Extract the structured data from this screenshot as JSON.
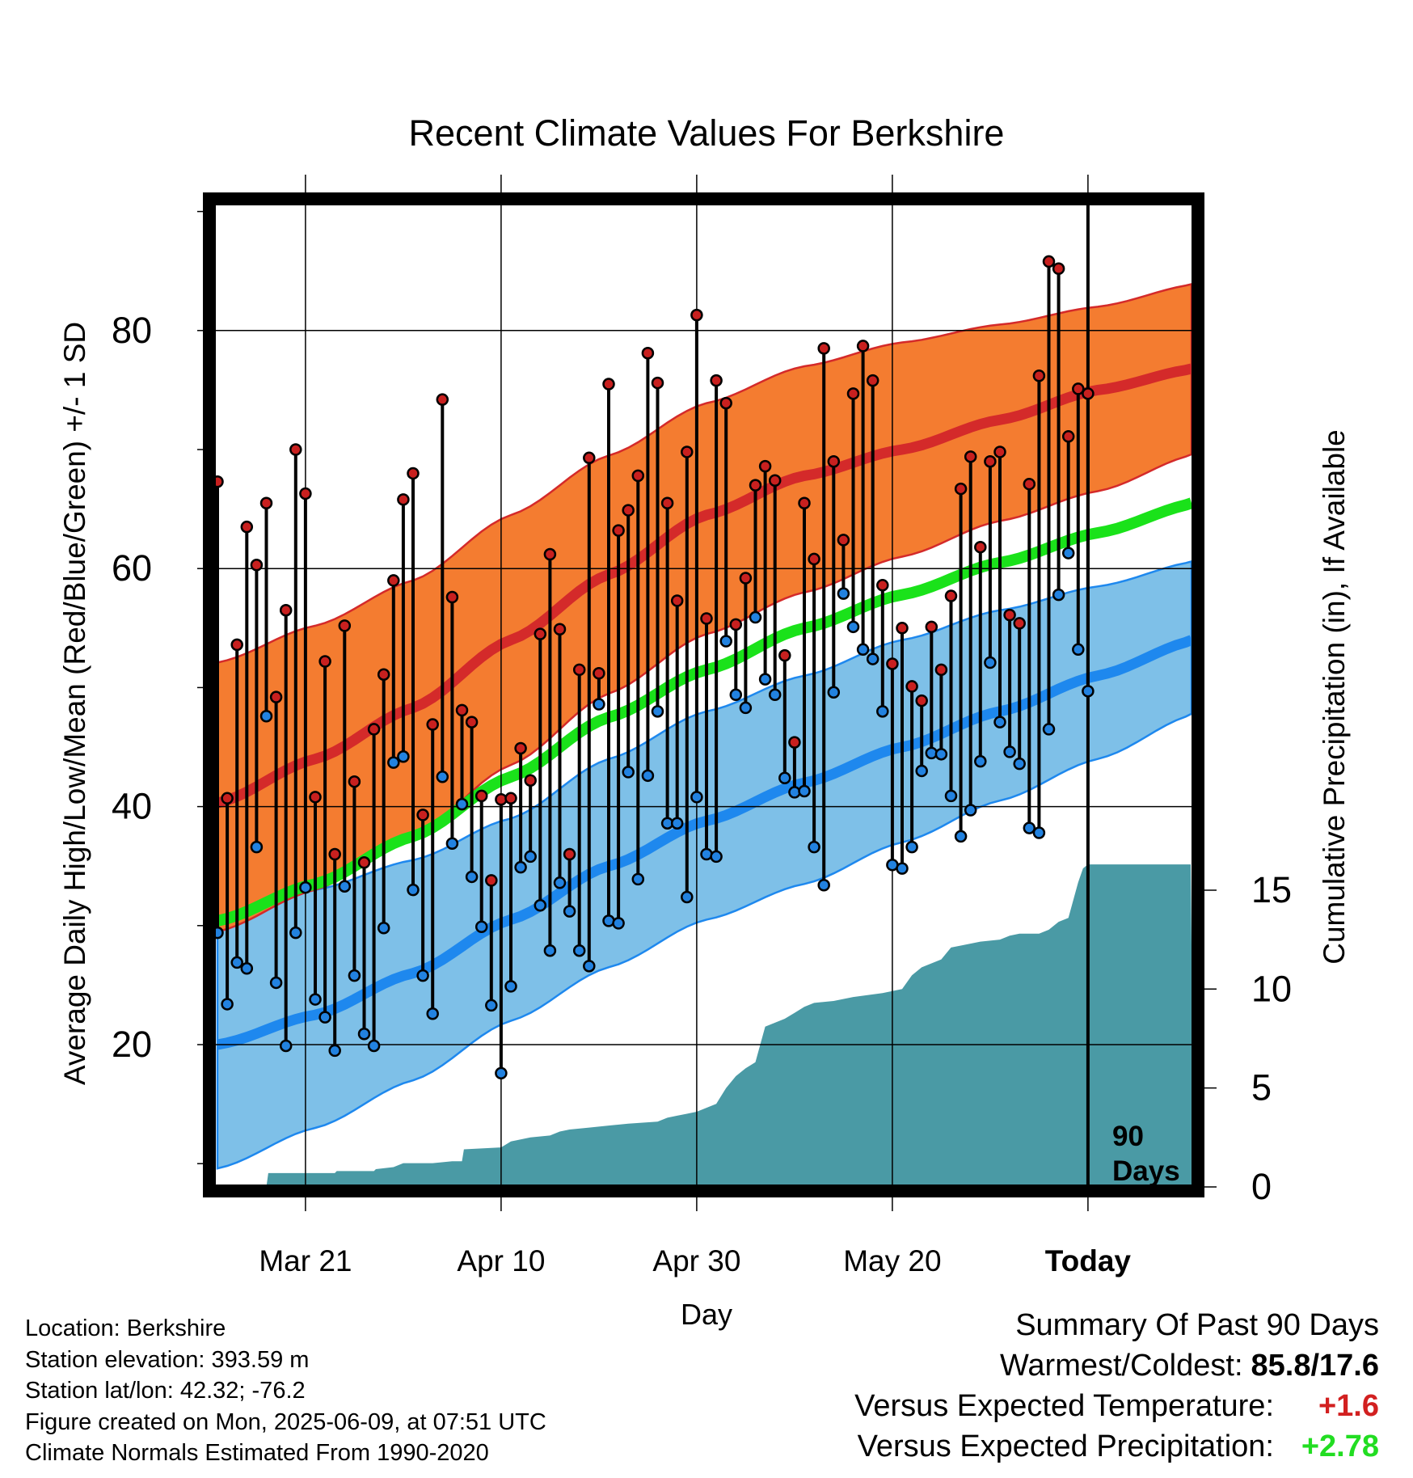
{
  "chart_data": {
    "type": "line",
    "title": "Recent Climate Values For Berkshire",
    "xlabel": "Day",
    "ylabel_left": "Average Daily High/Low/Mean (Red/Blue/Green) +/- 1 SD",
    "ylabel_right": "Cumulative Precipitation (in), If Available",
    "x_tick_labels": [
      "Mar 21",
      "Apr 10",
      "Apr 30",
      "May 20",
      "Today"
    ],
    "x_tick_days": [
      9,
      29,
      49,
      69,
      89
    ],
    "y_left_ticks": [
      20,
      40,
      60,
      80
    ],
    "y_left_range": [
      8,
      92
    ],
    "y_right_ticks": [
      0,
      5,
      10,
      15
    ],
    "y_right_range": [
      0,
      50.5
    ],
    "grid": true,
    "today_marker_label": [
      "90",
      "Days"
    ],
    "colors": {
      "high_band": "#f47c30",
      "high_mean": "#d42a2a",
      "low_band": "#7ec0e8",
      "low_mean": "#1e88ee",
      "mean_normal": "#1ae21a",
      "precip": "#4a9aa5",
      "high_dot": "#c8201f",
      "low_dot": "#2282e0"
    },
    "normal_high_mean": [
      [
        0,
        40.3
      ],
      [
        10,
        44
      ],
      [
        20,
        48.3
      ],
      [
        30,
        54
      ],
      [
        40,
        59.5
      ],
      [
        50,
        64.5
      ],
      [
        60,
        67.8
      ],
      [
        70,
        70
      ],
      [
        80,
        72.5
      ],
      [
        90,
        75
      ],
      [
        100,
        76.8
      ]
    ],
    "normal_high_upper": [
      [
        0,
        52.1
      ],
      [
        10,
        55.2
      ],
      [
        20,
        59
      ],
      [
        30,
        64.5
      ],
      [
        40,
        69.5
      ],
      [
        50,
        73.9
      ],
      [
        60,
        77
      ],
      [
        70,
        79
      ],
      [
        80,
        80.5
      ],
      [
        90,
        82
      ],
      [
        100,
        83.9
      ]
    ],
    "normal_high_lower": [
      [
        0,
        29.5
      ],
      [
        10,
        33
      ],
      [
        20,
        37.5
      ],
      [
        30,
        43.5
      ],
      [
        40,
        49.5
      ],
      [
        50,
        54.5
      ],
      [
        60,
        58
      ],
      [
        70,
        61
      ],
      [
        80,
        64
      ],
      [
        90,
        66.5
      ],
      [
        100,
        69.6
      ]
    ],
    "normal_low_mean": [
      [
        0,
        20
      ],
      [
        10,
        22.5
      ],
      [
        20,
        26
      ],
      [
        30,
        30.5
      ],
      [
        40,
        35
      ],
      [
        50,
        38.8
      ],
      [
        60,
        42
      ],
      [
        70,
        45
      ],
      [
        80,
        48
      ],
      [
        90,
        51
      ],
      [
        100,
        54
      ]
    ],
    "normal_low_upper": [
      [
        0,
        30.4
      ],
      [
        10,
        33
      ],
      [
        20,
        35.5
      ],
      [
        30,
        39
      ],
      [
        40,
        44
      ],
      [
        50,
        48
      ],
      [
        60,
        51
      ],
      [
        70,
        54
      ],
      [
        80,
        56.5
      ],
      [
        90,
        58.5
      ],
      [
        100,
        60.6
      ]
    ],
    "normal_low_lower": [
      [
        0,
        9.6
      ],
      [
        10,
        13
      ],
      [
        20,
        17
      ],
      [
        30,
        22
      ],
      [
        40,
        26.5
      ],
      [
        50,
        30.5
      ],
      [
        60,
        33.5
      ],
      [
        70,
        37
      ],
      [
        80,
        40.5
      ],
      [
        90,
        44
      ],
      [
        100,
        47.8
      ]
    ],
    "normal_mean": [
      [
        0,
        30.4
      ],
      [
        10,
        33.5
      ],
      [
        20,
        37.5
      ],
      [
        30,
        42.5
      ],
      [
        40,
        47.5
      ],
      [
        50,
        51.5
      ],
      [
        60,
        55
      ],
      [
        70,
        57.8
      ],
      [
        80,
        60.5
      ],
      [
        90,
        63
      ],
      [
        100,
        65.5
      ]
    ],
    "daily_high": [
      67.3,
      40.7,
      53.6,
      63.5,
      60.3,
      65.5,
      49.2,
      56.5,
      70,
      66.3,
      40.8,
      52.2,
      36,
      55.2,
      42.1,
      35.3,
      46.5,
      51.1,
      59,
      65.8,
      68,
      39.3,
      46.9,
      74.2,
      57.6,
      48.1,
      47.1,
      40.9,
      33.8,
      40.6,
      40.7,
      44.9,
      42.2,
      54.5,
      61.2,
      54.9,
      36,
      51.5,
      69.3,
      51.2,
      75.5,
      63.2,
      64.9,
      67.8,
      78.1,
      75.6,
      65.5,
      57.3,
      69.8,
      81.3,
      55.8,
      75.8,
      73.9,
      55.3,
      59.2,
      67,
      68.6,
      67.4,
      52.7,
      45.4,
      65.5,
      60.8,
      78.5,
      69,
      62.4,
      74.7,
      78.7,
      75.8,
      58.6,
      52,
      55,
      50.1,
      48.9,
      55.1,
      51.5,
      57.7,
      66.7,
      69.4,
      61.8,
      69,
      69.8,
      56.1,
      55.4,
      67.1,
      76.2,
      85.8,
      85.2,
      71.1,
      75.1,
      74.7
    ],
    "daily_low": [
      29.4,
      23.4,
      26.9,
      26.4,
      36.6,
      47.6,
      25.2,
      19.9,
      29.4,
      33.2,
      23.8,
      22.3,
      19.5,
      33.3,
      25.8,
      20.9,
      19.9,
      29.8,
      43.7,
      44.2,
      33,
      25.8,
      22.6,
      42.5,
      36.9,
      40.2,
      34.1,
      29.9,
      23.3,
      17.6,
      24.9,
      34.9,
      35.8,
      31.7,
      27.9,
      33.6,
      31.2,
      27.9,
      26.6,
      48.6,
      30.4,
      30.2,
      42.9,
      33.9,
      42.6,
      48,
      38.6,
      38.6,
      32.4,
      40.8,
      36,
      35.8,
      53.9,
      49.4,
      48.3,
      55.9,
      50.7,
      49.4,
      42.4,
      41.2,
      41.3,
      36.6,
      33.4,
      49.6,
      57.9,
      55.1,
      53.2,
      52.4,
      48,
      35.1,
      34.8,
      36.6,
      43,
      44.5,
      44.4,
      40.9,
      37.5,
      39.7,
      43.8,
      52.1,
      47.1,
      44.6,
      43.6,
      38.2,
      37.8,
      46.5,
      57.8,
      61.3,
      53.2,
      49.7
    ],
    "cumulative_precip": [
      [
        0,
        0
      ],
      [
        5,
        0
      ],
      [
        5.2,
        0.7
      ],
      [
        12,
        0.7
      ],
      [
        12.2,
        0.8
      ],
      [
        16,
        0.8
      ],
      [
        16.2,
        0.9
      ],
      [
        18,
        1.0
      ],
      [
        19,
        1.2
      ],
      [
        22,
        1.2
      ],
      [
        24,
        1.3
      ],
      [
        25,
        1.3
      ],
      [
        25.2,
        1.9
      ],
      [
        29,
        2.0
      ],
      [
        30,
        2.3
      ],
      [
        32,
        2.5
      ],
      [
        34,
        2.6
      ],
      [
        35,
        2.8
      ],
      [
        36,
        2.9
      ],
      [
        38,
        3.0
      ],
      [
        40,
        3.1
      ],
      [
        42,
        3.2
      ],
      [
        45,
        3.3
      ],
      [
        46,
        3.5
      ],
      [
        47,
        3.6
      ],
      [
        48,
        3.7
      ],
      [
        49,
        3.8
      ],
      [
        50,
        4.0
      ],
      [
        51,
        4.2
      ],
      [
        52,
        5.0
      ],
      [
        53,
        5.6
      ],
      [
        54,
        6.0
      ],
      [
        55,
        6.3
      ],
      [
        56,
        8.1
      ],
      [
        57,
        8.3
      ],
      [
        58,
        8.5
      ],
      [
        59,
        8.8
      ],
      [
        60,
        9.1
      ],
      [
        61,
        9.3
      ],
      [
        63,
        9.4
      ],
      [
        65,
        9.6
      ],
      [
        68,
        9.8
      ],
      [
        70,
        10.0
      ],
      [
        71,
        10.7
      ],
      [
        72,
        11.1
      ],
      [
        74,
        11.5
      ],
      [
        75,
        12.1
      ],
      [
        76,
        12.2
      ],
      [
        78,
        12.4
      ],
      [
        80,
        12.5
      ],
      [
        81,
        12.7
      ],
      [
        82,
        12.8
      ],
      [
        84,
        12.8
      ],
      [
        85,
        13.0
      ],
      [
        86,
        13.4
      ],
      [
        87,
        13.6
      ],
      [
        88,
        15.4
      ],
      [
        88.5,
        16.1
      ],
      [
        89,
        16.3
      ],
      [
        99.5,
        16.3
      ]
    ]
  },
  "info": {
    "location": "Location: Berkshire",
    "elevation": "Station elevation: 393.59 m",
    "latlon": "Station lat/lon: 42.32; -76.2",
    "created": "Figure created on Mon, 2025-06-09, at 07:51 UTC",
    "normals": "Climate Normals Estimated From 1990-2020"
  },
  "summary": {
    "heading": "Summary Of Past 90 Days",
    "warmest_coldest_label": "Warmest/Coldest:",
    "warmest_coldest_value": "85.8/17.6",
    "temp_label": "Versus Expected Temperature:",
    "temp_value": "+1.6",
    "temp_color": "#d22020",
    "precip_label": "Versus Expected Precipitation:",
    "precip_value": "+2.78",
    "precip_color": "#22dd22"
  }
}
